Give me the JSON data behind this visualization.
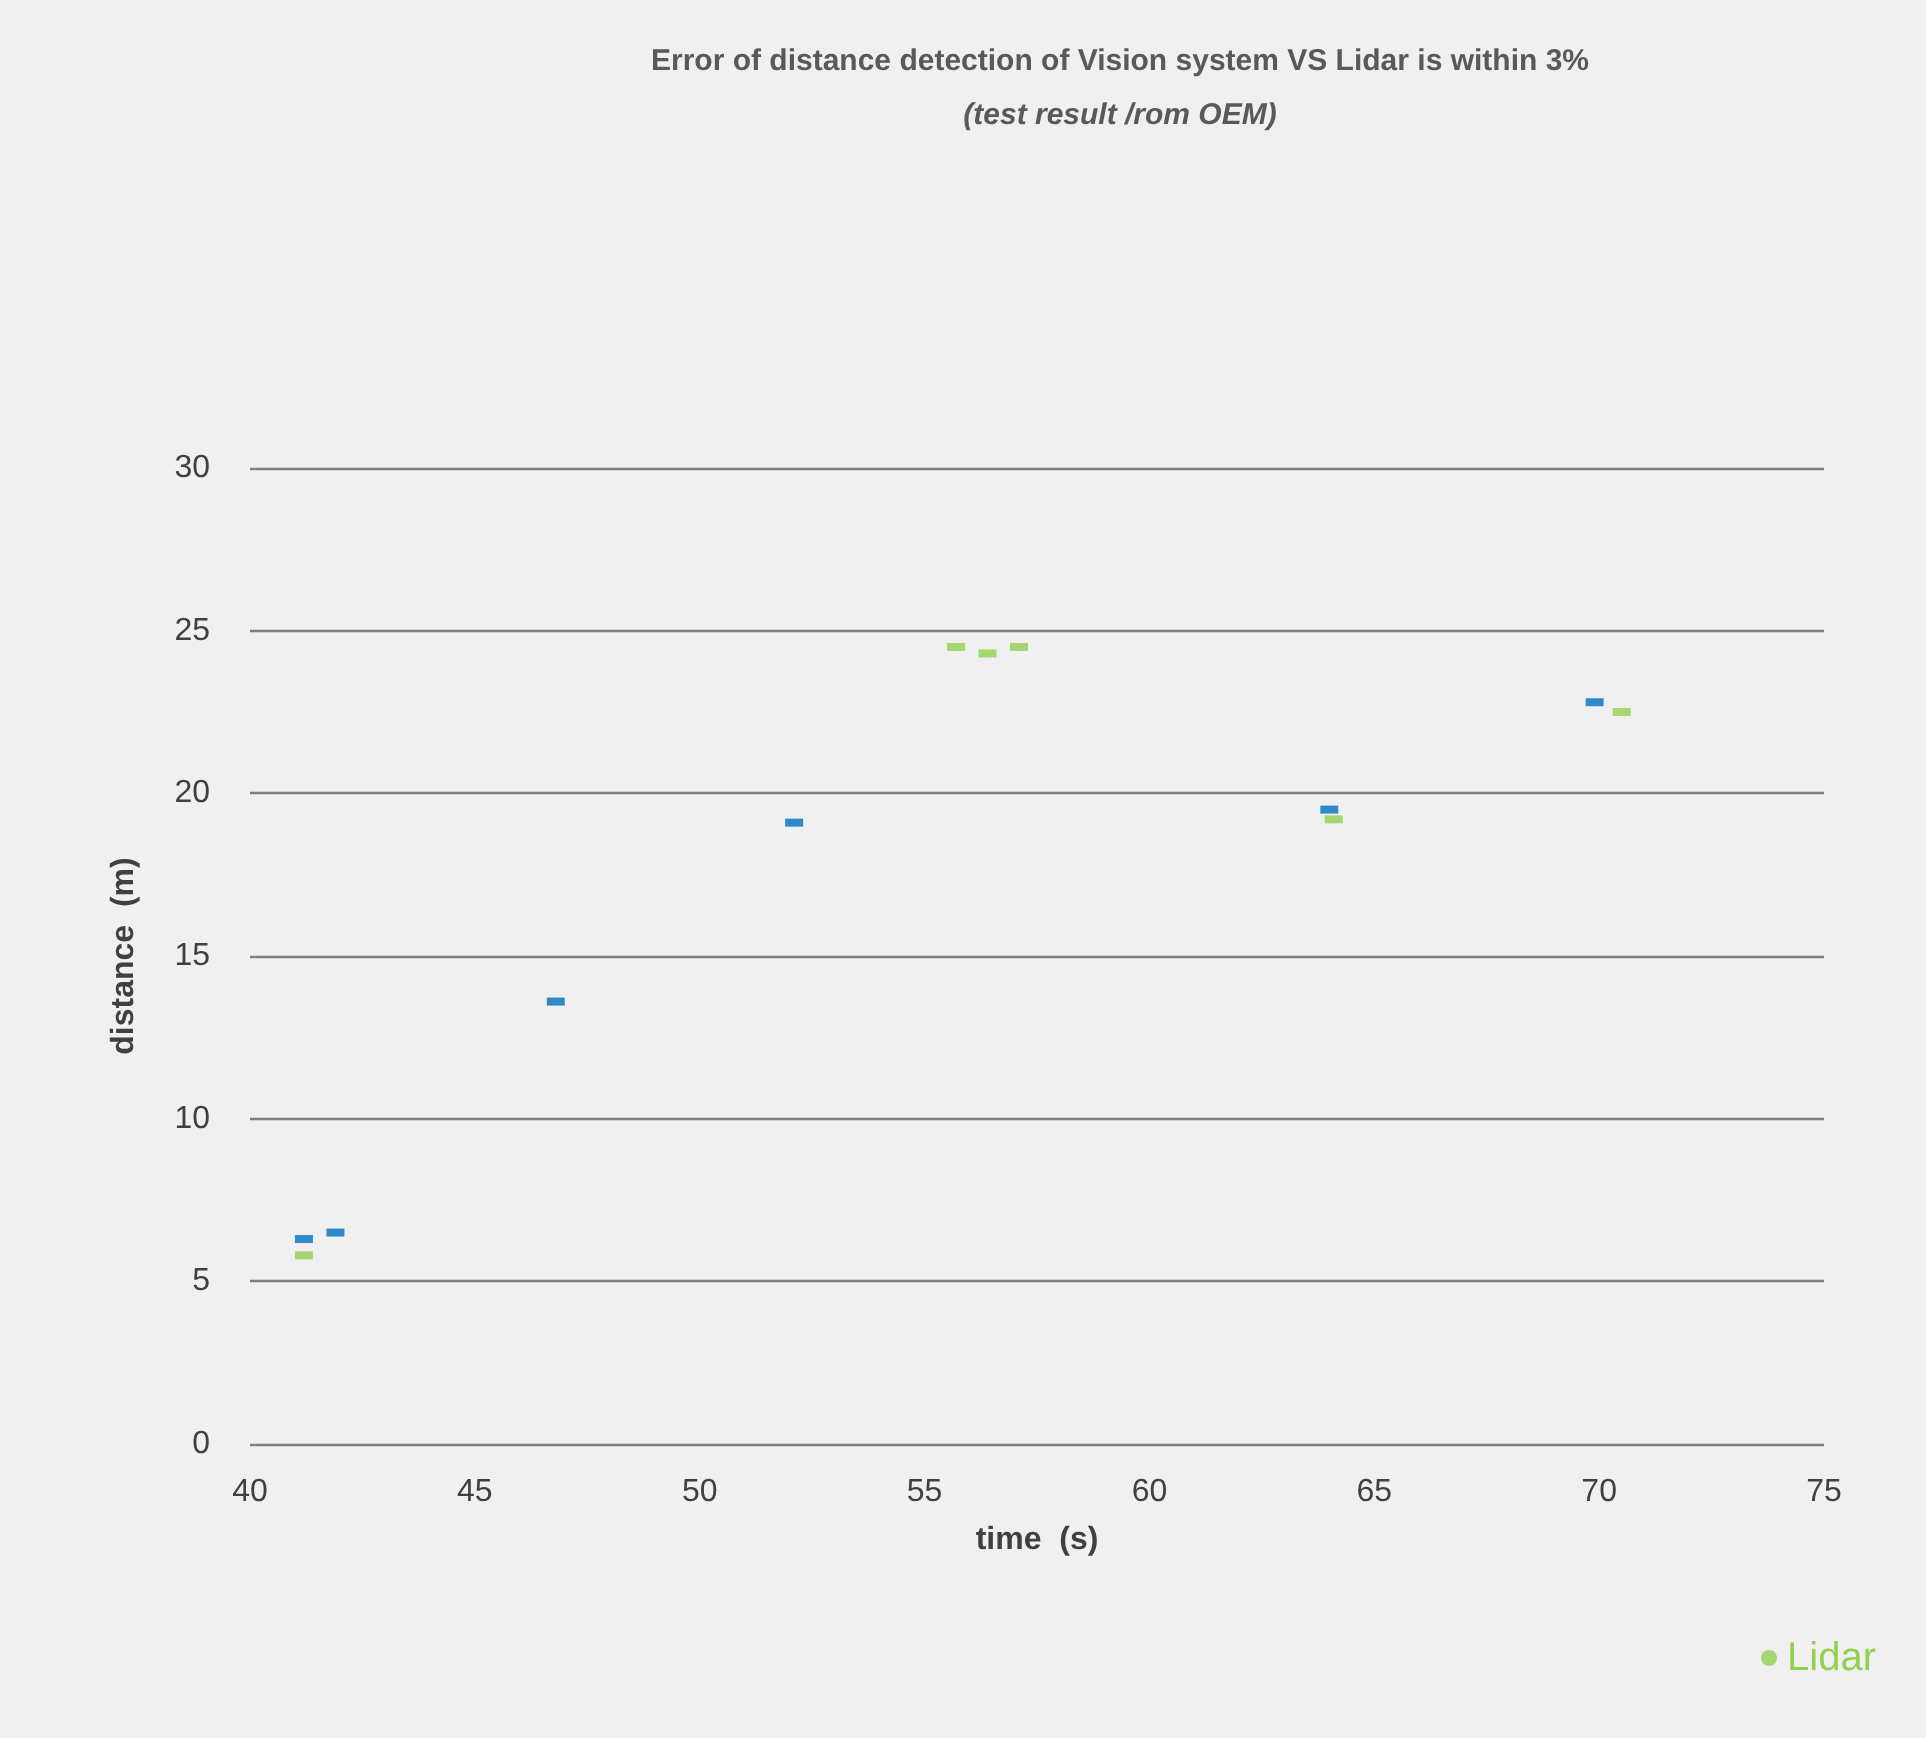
{
  "chart_data": {
    "type": "scatter",
    "title": "Error of distance detection of Vision system VS Lidar is within 3%",
    "subtitle": "(test result /rom OEM)",
    "xlabel": "time  (s)",
    "ylabel": "distance  (m)",
    "xlim": [
      40,
      75
    ],
    "xticks": [
      40,
      45,
      50,
      55,
      60,
      65,
      70,
      75
    ],
    "ylim": [
      0,
      30
    ],
    "yticks": [
      0,
      5,
      10,
      15,
      20,
      25,
      30
    ],
    "grid": "y",
    "legend": "bottom right",
    "marker": "square",
    "series": [
      {
        "color": "#0070c0",
        "x": [
          41.2,
          41.9,
          46.8,
          52.1,
          64.0,
          69.9
        ],
        "values": [
          6.3,
          6.5,
          13.6,
          19.1,
          19.5,
          22.8
        ]
      },
      {
        "name": "Lidar",
        "color": "#92d050",
        "x": [
          41.2,
          55.7,
          56.4,
          57.1,
          64.1,
          70.5
        ],
        "values": [
          5.8,
          24.5,
          24.3,
          24.5,
          19.2,
          22.5
        ]
      }
    ]
  }
}
